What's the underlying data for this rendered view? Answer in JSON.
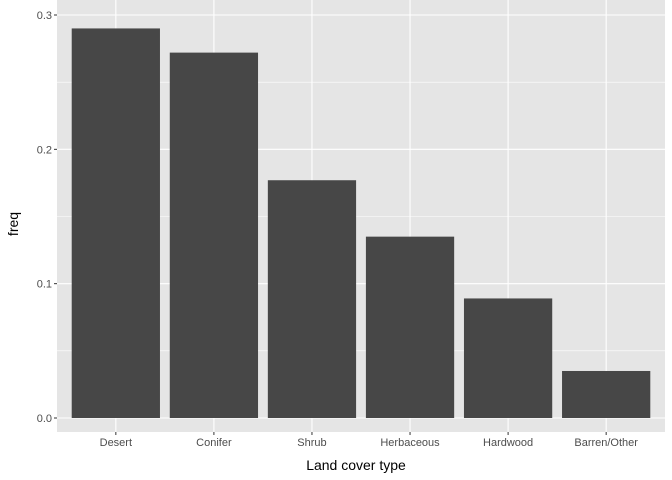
{
  "chart_data": {
    "type": "bar",
    "title": "",
    "xlabel": "Land cover type",
    "ylabel": "freq",
    "categories": [
      "Desert",
      "Conifer",
      "Shrub",
      "Herbaceous",
      "Hardwood",
      "Barren/Other"
    ],
    "values": [
      0.29,
      0.272,
      0.177,
      0.135,
      0.089,
      0.035
    ],
    "ylim": [
      0,
      0.3
    ],
    "yticks": [
      0.0,
      0.1,
      0.2,
      0.3
    ],
    "ytick_labels": [
      "0.0",
      "0.1",
      "0.2",
      "0.3"
    ],
    "grid": true,
    "legend": "none",
    "colors": {
      "panel_background": "#E5E5E5",
      "grid_major": "#FFFFFF",
      "bar_fill": "#474747",
      "tick_text": "#4D4D4D",
      "tick_mark": "#333333"
    }
  }
}
